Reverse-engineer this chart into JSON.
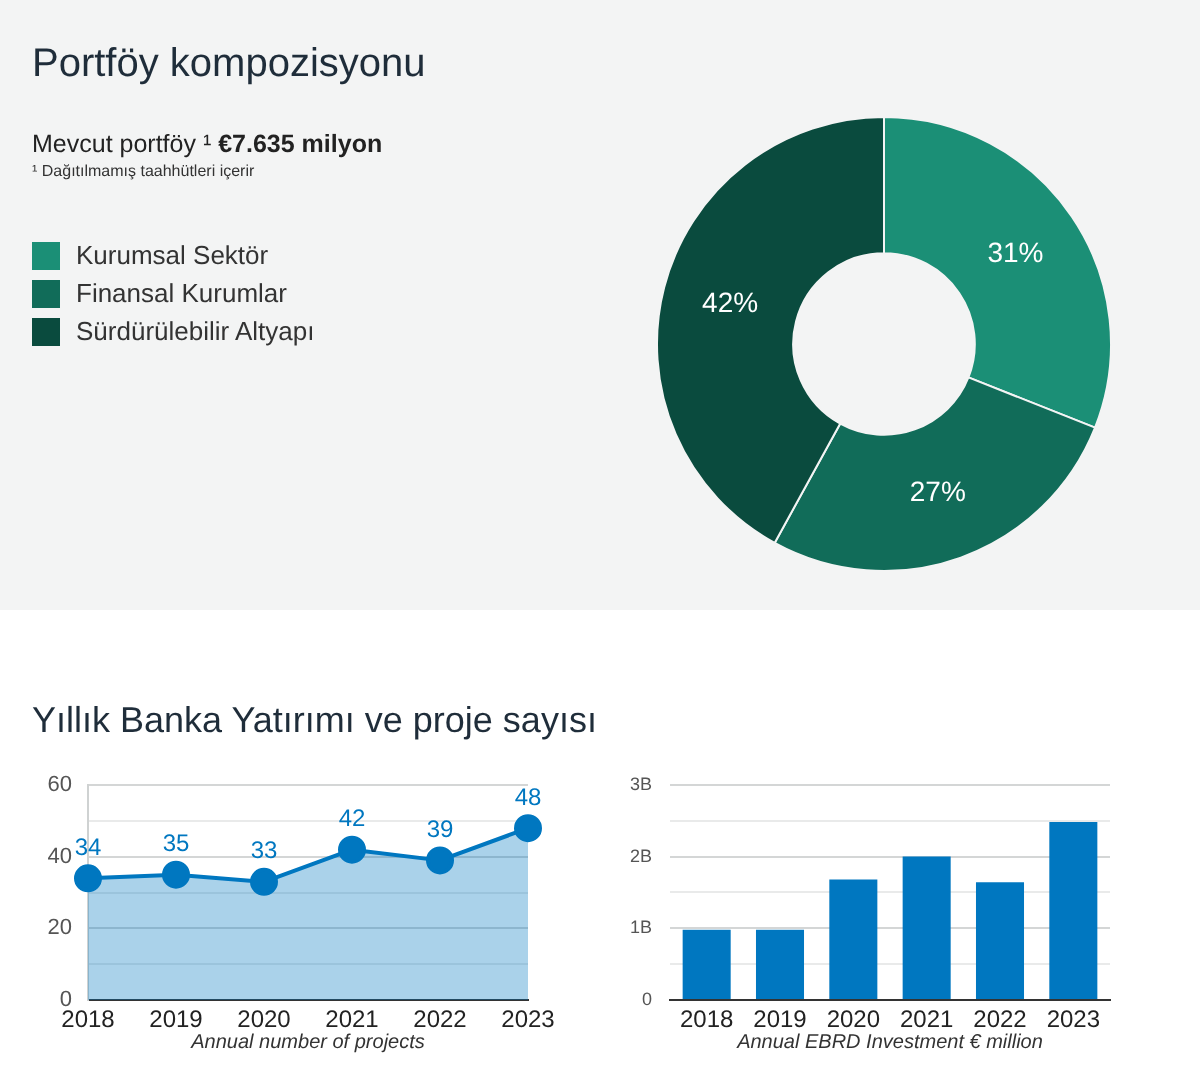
{
  "chart_data": [
    {
      "type": "donut",
      "title": "Portföy kompozisyonu",
      "subtitle": "Mevcut portföy ¹ €7.635 milyon",
      "annotations": [
        "¹ Dağıtılmamış taahhütleri içerir"
      ],
      "categories": [
        "Kurumsal Sektör",
        "Finansal Kurumlar",
        "Sürdürülebilir Altyapı"
      ],
      "values": [
        31,
        27,
        42
      ],
      "colors": [
        "#1b8f76",
        "#116c59",
        "#0a4b3e"
      ],
      "value_labels": [
        "31%",
        "27%",
        "42%"
      ],
      "legend": "left"
    },
    {
      "type": "area",
      "title": "Yıllık Banka Yatırımı ve proje sayısı",
      "xlabel": "Annual number of projects",
      "categories": [
        "2018",
        "2019",
        "2020",
        "2021",
        "2022",
        "2023"
      ],
      "series": [
        {
          "color": "#0077c0",
          "values": [
            34,
            35,
            33,
            42,
            39,
            48
          ]
        }
      ],
      "ylim": [
        0,
        60
      ],
      "yticks": [
        0,
        {
          "value": 10,
          "label": null
        },
        20,
        {
          "value": 30,
          "label": null
        },
        40,
        {
          "value": 50,
          "label": null
        },
        60
      ],
      "grid": "y",
      "marker": "circle",
      "data_labels": true
    },
    {
      "type": "bar",
      "xlabel": "Annual EBRD Investment € million",
      "categories": [
        "2018",
        "2019",
        "2020",
        "2021",
        "2022",
        "2023"
      ],
      "values": [
        0.98,
        0.98,
        1.68,
        2.0,
        1.64,
        2.48
      ],
      "color": "#0077c0",
      "ylim": [
        0,
        3
      ],
      "yticks": [
        0,
        {
          "value": 0.5,
          "label": null
        },
        {
          "value": 1,
          "label": "1B"
        },
        {
          "value": 1.5,
          "label": null
        },
        {
          "value": 2,
          "label": "2B"
        },
        {
          "value": 2.5,
          "label": null
        },
        {
          "value": 3,
          "label": "3B"
        }
      ],
      "grid": "y"
    }
  ]
}
